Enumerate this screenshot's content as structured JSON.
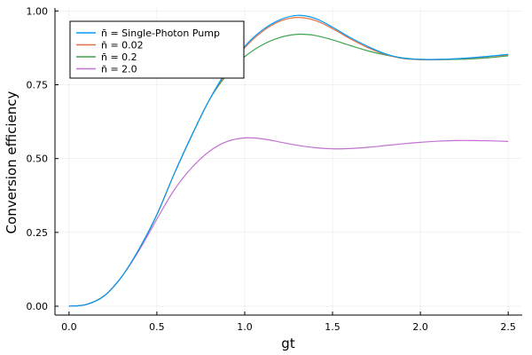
{
  "chart_data": {
    "type": "line",
    "xlabel": "gt",
    "ylabel": "Conversion efficiency",
    "xlim": [
      -0.08,
      2.58
    ],
    "ylim": [
      -0.03,
      1.01
    ],
    "xticks": [
      0.0,
      0.5,
      1.0,
      1.5,
      2.0,
      2.5
    ],
    "xtick_labels": [
      "0.0",
      "0.5",
      "1.0",
      "1.5",
      "2.0",
      "2.5"
    ],
    "yticks": [
      0.0,
      0.25,
      0.5,
      0.75,
      1.0
    ],
    "ytick_labels": [
      "0.00",
      "0.25",
      "0.50",
      "0.75",
      "1.00"
    ],
    "grid": true,
    "legend_position": "top-left",
    "series": [
      {
        "name": "n̄ = Single-Photon Pump",
        "color": "#009AFA",
        "x": [
          0,
          0.1,
          0.2,
          0.3,
          0.4,
          0.5,
          0.6,
          0.7,
          0.8,
          0.9,
          1.0,
          1.1,
          1.2,
          1.3,
          1.4,
          1.5,
          1.6,
          1.7,
          1.8,
          1.9,
          2.0,
          2.1,
          2.2,
          2.3,
          2.4,
          2.5
        ],
        "y": [
          0.0,
          0.006,
          0.035,
          0.1,
          0.195,
          0.31,
          0.45,
          0.58,
          0.7,
          0.8,
          0.88,
          0.935,
          0.97,
          0.985,
          0.975,
          0.945,
          0.91,
          0.88,
          0.855,
          0.84,
          0.836,
          0.836,
          0.838,
          0.842,
          0.847,
          0.853
        ]
      },
      {
        "name": "n̄ = 0.02",
        "color": "#E36F47",
        "x": [
          0,
          0.1,
          0.2,
          0.3,
          0.4,
          0.5,
          0.6,
          0.7,
          0.8,
          0.9,
          1.0,
          1.1,
          1.2,
          1.3,
          1.4,
          1.5,
          1.6,
          1.7,
          1.8,
          1.9,
          2.0,
          2.1,
          2.2,
          2.3,
          2.4,
          2.5
        ],
        "y": [
          0.0,
          0.006,
          0.035,
          0.1,
          0.195,
          0.31,
          0.45,
          0.58,
          0.7,
          0.795,
          0.875,
          0.93,
          0.965,
          0.978,
          0.968,
          0.94,
          0.906,
          0.876,
          0.853,
          0.839,
          0.835,
          0.835,
          0.838,
          0.841,
          0.846,
          0.851
        ]
      },
      {
        "name": "n̄ = 0.2",
        "color": "#3EA44E",
        "x": [
          0,
          0.1,
          0.2,
          0.3,
          0.4,
          0.5,
          0.6,
          0.7,
          0.8,
          0.9,
          1.0,
          1.1,
          1.2,
          1.3,
          1.4,
          1.5,
          1.6,
          1.7,
          1.8,
          1.9,
          2.0,
          2.1,
          2.2,
          2.3,
          2.4,
          2.5
        ],
        "y": [
          0.0,
          0.006,
          0.035,
          0.1,
          0.195,
          0.31,
          0.45,
          0.58,
          0.7,
          0.785,
          0.845,
          0.885,
          0.91,
          0.921,
          0.917,
          0.902,
          0.883,
          0.865,
          0.851,
          0.841,
          0.836,
          0.835,
          0.836,
          0.838,
          0.842,
          0.848
        ]
      },
      {
        "name": "n̄ = 2.0",
        "color": "#C271D2",
        "x": [
          0,
          0.1,
          0.2,
          0.3,
          0.4,
          0.5,
          0.6,
          0.7,
          0.8,
          0.9,
          1.0,
          1.1,
          1.2,
          1.3,
          1.4,
          1.5,
          1.6,
          1.7,
          1.8,
          1.9,
          2.0,
          2.1,
          2.2,
          2.3,
          2.4,
          2.5
        ],
        "y": [
          0.0,
          0.006,
          0.035,
          0.1,
          0.19,
          0.295,
          0.395,
          0.47,
          0.525,
          0.558,
          0.57,
          0.567,
          0.556,
          0.545,
          0.537,
          0.533,
          0.534,
          0.538,
          0.544,
          0.55,
          0.555,
          0.559,
          0.561,
          0.561,
          0.56,
          0.558
        ]
      }
    ]
  }
}
